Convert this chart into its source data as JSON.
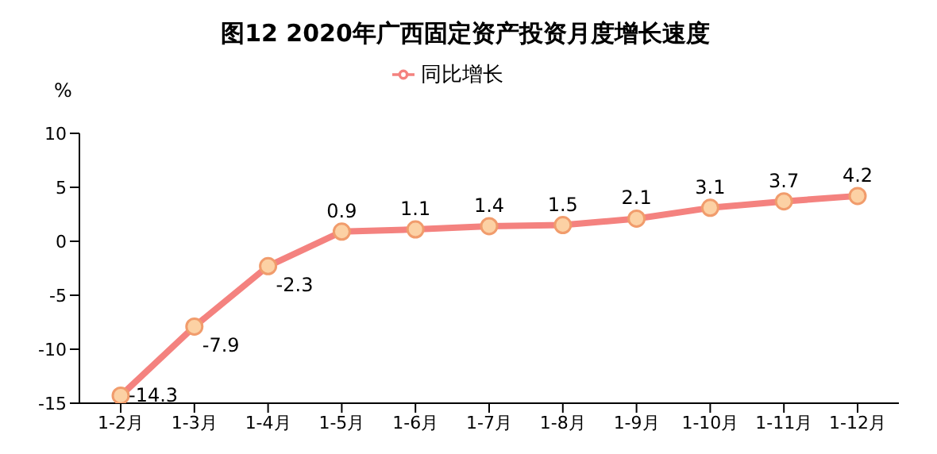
{
  "chart_data": {
    "type": "line",
    "title": "图12 2020年广西固定资产投资月度增长速度",
    "ylabel": "%",
    "categories": [
      "1-2月",
      "1-3月",
      "1-4月",
      "1-5月",
      "1-6月",
      "1-7月",
      "1-8月",
      "1-9月",
      "1-10月",
      "1-11月",
      "1-12月"
    ],
    "series": [
      {
        "name": "同比增长",
        "color": "#f4827f",
        "values": [
          -14.3,
          -7.9,
          -2.3,
          0.9,
          1.1,
          1.4,
          1.5,
          2.1,
          3.1,
          3.7,
          4.2
        ]
      }
    ],
    "ylim": [
      -15,
      10
    ],
    "yticks": [
      -15,
      -10,
      -5,
      0,
      5,
      10
    ],
    "grid": false,
    "legend": "top",
    "marker": "circle",
    "data_labels": true
  }
}
